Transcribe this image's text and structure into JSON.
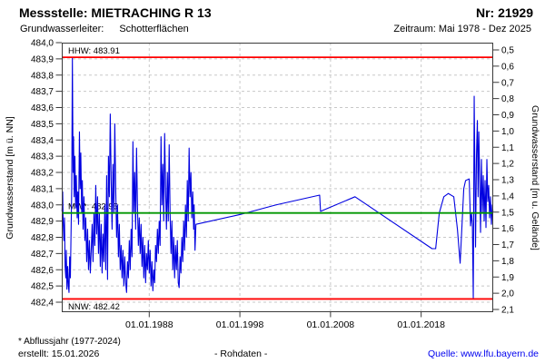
{
  "header": {
    "title": "Messstelle: MIETRACHING R 13",
    "station_no": "Nr: 21929",
    "aquifer_label": "Grundwasserleiter:",
    "aquifer_value": "Schotterflächen",
    "period": "Zeitraum: Mai 1978 - Dez 2025"
  },
  "footer": {
    "footnote": "* Abflussjahr (1977-2024)",
    "created": "erstellt: 15.01.2026",
    "series_label": "- Rohdaten -",
    "source": "Quelle: www.lfu.bayern.de"
  },
  "colors": {
    "data_line": "#0000e0",
    "extreme_line": "#ff0000",
    "mean_line": "#009600",
    "grid": "#c8c8c8",
    "axis": "#3a3a3a",
    "link": "#0000ee"
  },
  "chart_data": {
    "type": "line",
    "x_axis": {
      "range": [
        1978.35,
        2025.95
      ],
      "ticks": [
        {
          "label": "01.01.1988",
          "year": 1988
        },
        {
          "label": "01.01.1998",
          "year": 1998
        },
        {
          "label": "01.01.2008",
          "year": 2008
        },
        {
          "label": "01.01.2018",
          "year": 2018
        }
      ]
    },
    "left_axis": {
      "label": "Grundwasserstand [m ü. NN]",
      "min": 482.4,
      "max": 484.0,
      "tick_step": 0.1,
      "tick_labels": [
        "484,0",
        "483,9",
        "483,8",
        "483,7",
        "483,6",
        "483,5",
        "483,4",
        "483,3",
        "483,2",
        "483,1",
        "483,0",
        "482,9",
        "482,8",
        "482,7",
        "482,6",
        "482,5",
        "482,4"
      ]
    },
    "right_axis": {
      "label": "Grundwasserstand [m u. Gelände]",
      "min": 0.5,
      "max": 2.1,
      "tick_step": 0.1,
      "tick_labels": [
        "0,5",
        "0,6",
        "0,7",
        "0,8",
        "0,9",
        "1,0",
        "1,1",
        "1,2",
        "1,3",
        "1,4",
        "1,5",
        "1,6",
        "1,7",
        "1,8",
        "1,9",
        "2,0",
        "2,1"
      ]
    },
    "reference_lines": [
      {
        "id": "HHW",
        "label": "HHW: 483.91",
        "value": 483.91,
        "color": "#ff0000",
        "label_pos": "above"
      },
      {
        "id": "MW",
        "label": "MW*: 482.95",
        "value": 482.95,
        "color": "#009600",
        "label_pos": "above"
      },
      {
        "id": "NNW",
        "label": "NNW: 482.42",
        "value": 482.42,
        "color": "#ff0000",
        "label_pos": "below"
      }
    ],
    "series": [
      {
        "name": "Rohdaten",
        "color": "#0000e0",
        "points": [
          [
            1978.38,
            482.96
          ],
          [
            1978.45,
            483.08
          ],
          [
            1978.5,
            482.9
          ],
          [
            1978.58,
            482.78
          ],
          [
            1978.65,
            482.92
          ],
          [
            1978.72,
            482.62
          ],
          [
            1978.8,
            482.55
          ],
          [
            1978.85,
            482.72
          ],
          [
            1978.92,
            482.48
          ],
          [
            1979.0,
            482.62
          ],
          [
            1979.08,
            482.5
          ],
          [
            1979.15,
            482.46
          ],
          [
            1979.22,
            482.68
          ],
          [
            1979.3,
            482.55
          ],
          [
            1979.38,
            482.85
          ],
          [
            1979.45,
            483.1
          ],
          [
            1979.52,
            483.91
          ],
          [
            1979.6,
            483.2
          ],
          [
            1979.65,
            483.42
          ],
          [
            1979.72,
            483.05
          ],
          [
            1979.8,
            483.3
          ],
          [
            1979.88,
            482.98
          ],
          [
            1979.95,
            483.18
          ],
          [
            1980.05,
            482.92
          ],
          [
            1980.12,
            483.08
          ],
          [
            1980.2,
            482.88
          ],
          [
            1980.3,
            483.45
          ],
          [
            1980.38,
            483.1
          ],
          [
            1980.45,
            483.32
          ],
          [
            1980.55,
            482.95
          ],
          [
            1980.62,
            483.15
          ],
          [
            1980.7,
            482.85
          ],
          [
            1980.8,
            483.05
          ],
          [
            1980.9,
            482.78
          ],
          [
            1981.0,
            482.92
          ],
          [
            1981.1,
            482.65
          ],
          [
            1981.2,
            482.85
          ],
          [
            1981.3,
            482.6
          ],
          [
            1981.4,
            482.78
          ],
          [
            1981.5,
            482.58
          ],
          [
            1981.6,
            482.72
          ],
          [
            1981.7,
            482.88
          ],
          [
            1981.8,
            482.65
          ],
          [
            1981.9,
            482.95
          ],
          [
            1982.0,
            482.75
          ],
          [
            1982.1,
            483.12
          ],
          [
            1982.2,
            482.82
          ],
          [
            1982.3,
            483.05
          ],
          [
            1982.4,
            482.7
          ],
          [
            1982.5,
            482.95
          ],
          [
            1982.6,
            482.62
          ],
          [
            1982.7,
            482.88
          ],
          [
            1982.8,
            482.58
          ],
          [
            1982.9,
            482.82
          ],
          [
            1983.0,
            482.65
          ],
          [
            1983.1,
            483.0
          ],
          [
            1983.2,
            482.6
          ],
          [
            1983.3,
            483.18
          ],
          [
            1983.4,
            482.54
          ],
          [
            1983.5,
            483.3
          ],
          [
            1983.6,
            483.05
          ],
          [
            1983.7,
            483.56
          ],
          [
            1983.8,
            483.15
          ],
          [
            1983.9,
            482.85
          ],
          [
            1984.0,
            483.25
          ],
          [
            1984.1,
            482.95
          ],
          [
            1984.2,
            483.5
          ],
          [
            1984.3,
            483.1
          ],
          [
            1984.4,
            482.8
          ],
          [
            1984.5,
            483.0
          ],
          [
            1984.6,
            482.68
          ],
          [
            1984.7,
            482.88
          ],
          [
            1984.8,
            482.6
          ],
          [
            1984.9,
            482.75
          ],
          [
            1985.0,
            482.55
          ],
          [
            1985.1,
            482.72
          ],
          [
            1985.2,
            482.5
          ],
          [
            1985.3,
            482.68
          ],
          [
            1985.4,
            482.52
          ],
          [
            1985.5,
            482.46
          ],
          [
            1985.6,
            482.65
          ],
          [
            1985.7,
            482.55
          ],
          [
            1985.8,
            482.78
          ],
          [
            1985.9,
            482.6
          ],
          [
            1986.0,
            482.85
          ],
          [
            1986.1,
            482.68
          ],
          [
            1986.2,
            483.39
          ],
          [
            1986.3,
            482.95
          ],
          [
            1986.4,
            483.2
          ],
          [
            1986.5,
            482.85
          ],
          [
            1986.6,
            483.35
          ],
          [
            1986.7,
            483.0
          ],
          [
            1986.8,
            482.75
          ],
          [
            1986.9,
            482.92
          ],
          [
            1987.0,
            482.7
          ],
          [
            1987.1,
            482.88
          ],
          [
            1987.2,
            482.62
          ],
          [
            1987.3,
            482.8
          ],
          [
            1987.4,
            482.55
          ],
          [
            1987.5,
            482.75
          ],
          [
            1987.6,
            482.52
          ],
          [
            1987.7,
            482.7
          ],
          [
            1987.8,
            482.6
          ],
          [
            1987.9,
            482.78
          ],
          [
            1988.0,
            482.58
          ],
          [
            1988.1,
            482.72
          ],
          [
            1988.2,
            482.5
          ],
          [
            1988.3,
            482.65
          ],
          [
            1988.4,
            482.47
          ],
          [
            1988.5,
            482.6
          ],
          [
            1988.6,
            482.52
          ],
          [
            1988.7,
            482.75
          ],
          [
            1988.8,
            482.65
          ],
          [
            1988.9,
            482.85
          ],
          [
            1989.0,
            482.7
          ],
          [
            1989.1,
            482.9
          ],
          [
            1989.2,
            482.75
          ],
          [
            1989.3,
            483.42
          ],
          [
            1989.4,
            483.0
          ],
          [
            1989.5,
            483.25
          ],
          [
            1989.6,
            482.9
          ],
          [
            1989.7,
            483.44
          ],
          [
            1989.8,
            483.1
          ],
          [
            1989.9,
            482.85
          ],
          [
            1990.0,
            483.2
          ],
          [
            1990.1,
            482.9
          ],
          [
            1990.2,
            483.37
          ],
          [
            1990.3,
            482.95
          ],
          [
            1990.4,
            482.7
          ],
          [
            1990.5,
            482.9
          ],
          [
            1990.6,
            482.6
          ],
          [
            1990.7,
            482.8
          ],
          [
            1990.8,
            482.55
          ],
          [
            1990.9,
            482.75
          ],
          [
            1991.0,
            482.6
          ],
          [
            1991.1,
            482.78
          ],
          [
            1991.2,
            482.52
          ],
          [
            1991.3,
            482.49
          ],
          [
            1991.4,
            482.68
          ],
          [
            1991.5,
            482.58
          ],
          [
            1991.6,
            482.8
          ],
          [
            1991.7,
            482.65
          ],
          [
            1991.8,
            482.9
          ],
          [
            1991.9,
            482.72
          ],
          [
            1992.0,
            483.0
          ],
          [
            1992.1,
            482.8
          ],
          [
            1992.2,
            483.15
          ],
          [
            1992.3,
            482.9
          ],
          [
            1992.4,
            483.35
          ],
          [
            1992.5,
            483.05
          ],
          [
            1992.6,
            483.2
          ],
          [
            1992.7,
            482.92
          ],
          [
            1992.8,
            483.08
          ],
          [
            1992.9,
            482.85
          ],
          [
            1992.95,
            483.0
          ],
          [
            1993.05,
            482.72
          ],
          [
            1993.15,
            482.88
          ],
          [
            1998.0,
            482.94
          ],
          [
            2002.0,
            483.0
          ],
          [
            2006.8,
            483.06
          ],
          [
            2006.9,
            482.96
          ],
          [
            2010.7,
            483.05
          ],
          [
            2019.2,
            482.73
          ],
          [
            2019.6,
            482.73
          ],
          [
            2020.0,
            482.95
          ],
          [
            2020.5,
            483.05
          ],
          [
            2021.0,
            483.07
          ],
          [
            2021.6,
            483.05
          ],
          [
            2022.0,
            482.85
          ],
          [
            2022.3,
            482.64
          ],
          [
            2022.7,
            483.1
          ],
          [
            2022.9,
            483.15
          ],
          [
            2023.3,
            483.16
          ],
          [
            2023.45,
            482.87
          ],
          [
            2023.55,
            482.95
          ],
          [
            2023.65,
            482.88
          ],
          [
            2023.75,
            482.42
          ],
          [
            2023.85,
            483.67
          ],
          [
            2023.92,
            483.25
          ],
          [
            2024.0,
            482.74
          ],
          [
            2024.1,
            483.3
          ],
          [
            2024.2,
            483.52
          ],
          [
            2024.28,
            483.05
          ],
          [
            2024.36,
            483.45
          ],
          [
            2024.45,
            483.18
          ],
          [
            2024.55,
            482.83
          ],
          [
            2024.65,
            483.28
          ],
          [
            2024.75,
            482.95
          ],
          [
            2024.85,
            483.18
          ],
          [
            2024.95,
            482.9
          ],
          [
            2025.05,
            483.15
          ],
          [
            2025.15,
            482.86
          ],
          [
            2025.25,
            483.28
          ],
          [
            2025.35,
            483.02
          ],
          [
            2025.45,
            483.12
          ],
          [
            2025.55,
            482.92
          ],
          [
            2025.65,
            483.05
          ],
          [
            2025.75,
            482.88
          ],
          [
            2025.85,
            483.0
          ],
          [
            2025.92,
            482.96
          ]
        ]
      }
    ]
  }
}
